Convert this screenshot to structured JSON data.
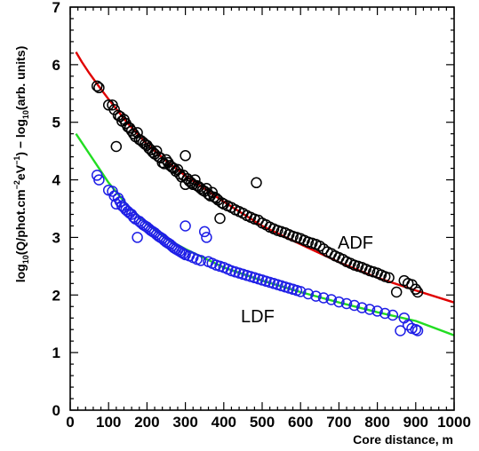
{
  "chart_data": {
    "type": "scatter",
    "title": "",
    "xlabel": "Core distance, m",
    "ylabel": "log10(Q/phot.cm⁻²eV⁻¹) − log10(arb. units)",
    "ylabel_parts": {
      "a": "log",
      "a_sub": "10",
      "b": "(Q/phot.cm",
      "b_sup": "−2",
      "c": "eV",
      "c_sup": "−1",
      "d": ") − log",
      "d_sub": "10",
      "e": "(arb. units)"
    },
    "xlim": [
      0,
      1000
    ],
    "ylim": [
      0,
      7
    ],
    "x_ticks": [
      "0",
      "100",
      "200",
      "300",
      "400",
      "500",
      "600",
      "700",
      "800",
      "900",
      "1000"
    ],
    "y_ticks": [
      "0",
      "1",
      "2",
      "3",
      "4",
      "5",
      "6",
      "7"
    ],
    "grid": false,
    "series": [
      {
        "name": "ADF",
        "marker_color": "#000000",
        "fit_color": "#e00000",
        "points": [
          [
            70,
            5.63
          ],
          [
            75,
            5.6
          ],
          [
            100,
            5.3
          ],
          [
            110,
            5.3
          ],
          [
            115,
            5.22
          ],
          [
            120,
            4.58
          ],
          [
            125,
            5.12
          ],
          [
            130,
            5.1
          ],
          [
            135,
            5.02
          ],
          [
            140,
            5.05
          ],
          [
            145,
            4.98
          ],
          [
            150,
            4.92
          ],
          [
            155,
            4.9
          ],
          [
            160,
            4.85
          ],
          [
            165,
            4.8
          ],
          [
            170,
            4.75
          ],
          [
            175,
            4.82
          ],
          [
            180,
            4.7
          ],
          [
            185,
            4.68
          ],
          [
            190,
            4.65
          ],
          [
            195,
            4.62
          ],
          [
            200,
            4.6
          ],
          [
            205,
            4.55
          ],
          [
            210,
            4.52
          ],
          [
            215,
            4.48
          ],
          [
            220,
            4.45
          ],
          [
            225,
            4.5
          ],
          [
            230,
            4.4
          ],
          [
            235,
            4.38
          ],
          [
            240,
            4.3
          ],
          [
            245,
            4.28
          ],
          [
            250,
            4.35
          ],
          [
            255,
            4.3
          ],
          [
            260,
            4.25
          ],
          [
            265,
            4.22
          ],
          [
            270,
            4.2
          ],
          [
            275,
            4.15
          ],
          [
            280,
            4.18
          ],
          [
            285,
            4.1
          ],
          [
            290,
            4.05
          ],
          [
            295,
            4.08
          ],
          [
            300,
            4.42
          ],
          [
            300,
            3.92
          ],
          [
            305,
            4.02
          ],
          [
            310,
            3.98
          ],
          [
            315,
            3.95
          ],
          [
            320,
            3.92
          ],
          [
            325,
            4.0
          ],
          [
            330,
            3.9
          ],
          [
            335,
            3.88
          ],
          [
            340,
            3.85
          ],
          [
            345,
            3.82
          ],
          [
            350,
            3.8
          ],
          [
            355,
            3.85
          ],
          [
            360,
            3.75
          ],
          [
            365,
            3.72
          ],
          [
            370,
            3.78
          ],
          [
            375,
            3.7
          ],
          [
            380,
            3.68
          ],
          [
            385,
            3.65
          ],
          [
            390,
            3.33
          ],
          [
            395,
            3.6
          ],
          [
            400,
            3.58
          ],
          [
            410,
            3.55
          ],
          [
            420,
            3.52
          ],
          [
            430,
            3.48
          ],
          [
            440,
            3.45
          ],
          [
            450,
            3.42
          ],
          [
            460,
            3.38
          ],
          [
            470,
            3.35
          ],
          [
            480,
            3.32
          ],
          [
            485,
            3.95
          ],
          [
            490,
            3.3
          ],
          [
            500,
            3.25
          ],
          [
            510,
            3.22
          ],
          [
            520,
            3.18
          ],
          [
            530,
            3.15
          ],
          [
            540,
            3.12
          ],
          [
            550,
            3.1
          ],
          [
            560,
            3.08
          ],
          [
            570,
            3.05
          ],
          [
            580,
            3.02
          ],
          [
            590,
            3.0
          ],
          [
            600,
            2.98
          ],
          [
            610,
            2.95
          ],
          [
            620,
            2.92
          ],
          [
            630,
            2.9
          ],
          [
            640,
            2.88
          ],
          [
            650,
            2.85
          ],
          [
            660,
            2.8
          ],
          [
            670,
            2.75
          ],
          [
            680,
            2.72
          ],
          [
            690,
            2.68
          ],
          [
            700,
            2.65
          ],
          [
            710,
            2.62
          ],
          [
            720,
            2.58
          ],
          [
            730,
            2.55
          ],
          [
            740,
            2.52
          ],
          [
            750,
            2.5
          ],
          [
            760,
            2.48
          ],
          [
            770,
            2.45
          ],
          [
            780,
            2.42
          ],
          [
            790,
            2.4
          ],
          [
            800,
            2.38
          ],
          [
            810,
            2.35
          ],
          [
            820,
            2.32
          ],
          [
            830,
            2.3
          ],
          [
            850,
            2.05
          ],
          [
            870,
            2.25
          ],
          [
            880,
            2.2
          ],
          [
            890,
            2.18
          ],
          [
            900,
            2.1
          ],
          [
            905,
            2.05
          ]
        ]
      },
      {
        "name": "LDF",
        "marker_color": "#1e1ee6",
        "fit_color": "#22dd22",
        "points": [
          [
            70,
            4.08
          ],
          [
            75,
            4.0
          ],
          [
            100,
            3.82
          ],
          [
            110,
            3.8
          ],
          [
            115,
            3.72
          ],
          [
            120,
            3.58
          ],
          [
            125,
            3.68
          ],
          [
            130,
            3.62
          ],
          [
            135,
            3.55
          ],
          [
            140,
            3.52
          ],
          [
            145,
            3.48
          ],
          [
            150,
            3.45
          ],
          [
            155,
            3.42
          ],
          [
            160,
            3.4
          ],
          [
            165,
            3.35
          ],
          [
            170,
            3.32
          ],
          [
            175,
            3.0
          ],
          [
            180,
            3.28
          ],
          [
            185,
            3.25
          ],
          [
            190,
            3.22
          ],
          [
            195,
            3.2
          ],
          [
            200,
            3.18
          ],
          [
            205,
            3.15
          ],
          [
            210,
            3.12
          ],
          [
            215,
            3.1
          ],
          [
            220,
            3.08
          ],
          [
            225,
            3.05
          ],
          [
            230,
            3.02
          ],
          [
            235,
            3.0
          ],
          [
            240,
            2.98
          ],
          [
            245,
            2.95
          ],
          [
            250,
            2.92
          ],
          [
            255,
            2.9
          ],
          [
            260,
            2.88
          ],
          [
            265,
            2.85
          ],
          [
            270,
            2.82
          ],
          [
            275,
            2.8
          ],
          [
            280,
            2.78
          ],
          [
            285,
            2.76
          ],
          [
            290,
            2.74
          ],
          [
            295,
            2.72
          ],
          [
            300,
            3.2
          ],
          [
            300,
            2.7
          ],
          [
            310,
            2.68
          ],
          [
            320,
            2.65
          ],
          [
            330,
            2.62
          ],
          [
            340,
            2.6
          ],
          [
            350,
            3.1
          ],
          [
            355,
            3.0
          ],
          [
            360,
            2.58
          ],
          [
            370,
            2.55
          ],
          [
            380,
            2.52
          ],
          [
            390,
            2.5
          ],
          [
            400,
            2.48
          ],
          [
            410,
            2.45
          ],
          [
            420,
            2.42
          ],
          [
            430,
            2.4
          ],
          [
            440,
            2.38
          ],
          [
            450,
            2.36
          ],
          [
            460,
            2.34
          ],
          [
            470,
            2.32
          ],
          [
            480,
            2.3
          ],
          [
            490,
            2.28
          ],
          [
            500,
            2.26
          ],
          [
            510,
            2.24
          ],
          [
            520,
            2.22
          ],
          [
            530,
            2.2
          ],
          [
            540,
            2.18
          ],
          [
            550,
            2.16
          ],
          [
            560,
            2.14
          ],
          [
            570,
            2.12
          ],
          [
            580,
            2.1
          ],
          [
            590,
            2.08
          ],
          [
            600,
            2.06
          ],
          [
            620,
            2.02
          ],
          [
            640,
            1.98
          ],
          [
            660,
            1.95
          ],
          [
            680,
            1.92
          ],
          [
            700,
            1.88
          ],
          [
            720,
            1.85
          ],
          [
            740,
            1.82
          ],
          [
            760,
            1.78
          ],
          [
            780,
            1.75
          ],
          [
            800,
            1.72
          ],
          [
            820,
            1.68
          ],
          [
            840,
            1.65
          ],
          [
            860,
            1.38
          ],
          [
            870,
            1.6
          ],
          [
            880,
            1.48
          ],
          [
            890,
            1.42
          ],
          [
            900,
            1.4
          ],
          [
            905,
            1.38
          ]
        ]
      }
    ],
    "fits": [
      {
        "name": "ADF",
        "color": "#e00000",
        "x": [
          15,
          30,
          50,
          75,
          100,
          150,
          200,
          250,
          300,
          400,
          500,
          600,
          700,
          800,
          900,
          1000
        ],
        "y": [
          6.22,
          6.05,
          5.85,
          5.62,
          5.4,
          4.98,
          4.62,
          4.33,
          4.07,
          3.62,
          3.2,
          2.88,
          2.57,
          2.3,
          2.08,
          1.87
        ]
      },
      {
        "name": "LDF",
        "color": "#22dd22",
        "x": [
          15,
          30,
          50,
          75,
          100,
          150,
          200,
          250,
          300,
          400,
          500,
          600,
          700,
          800,
          900,
          1000
        ],
        "y": [
          4.8,
          4.65,
          4.45,
          4.2,
          3.95,
          3.55,
          3.24,
          2.98,
          2.8,
          2.48,
          2.25,
          2.05,
          1.87,
          1.7,
          1.55,
          1.3
        ]
      }
    ],
    "annotations": [
      "ADF",
      "LDF"
    ]
  }
}
